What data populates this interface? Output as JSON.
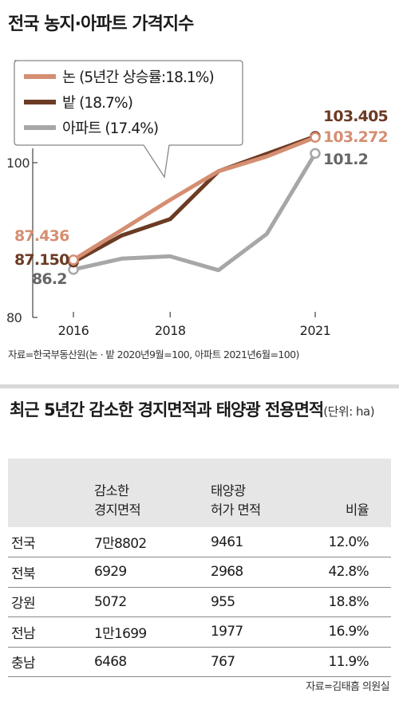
{
  "chart_title": "전국 농지·아파트 가격지수",
  "chart_source": "자료=한국부동산원(논 · 밭 2020년9월=100, 아파트 2021년6월=100)",
  "chart_data": {
    "type": "line",
    "title": "전국 농지·아파트 가격지수",
    "x_ticks": [
      "2016",
      "2018",
      "2021"
    ],
    "y_ticks": [
      "80",
      "100"
    ],
    "ylim": [
      80,
      120
    ],
    "grid": false,
    "legend_position": "top-left",
    "x": [
      2016,
      2017,
      2018,
      2019,
      2020,
      2021
    ],
    "series": [
      {
        "name": "논",
        "legend_label": "논 (5년간 상승률:18.1%)",
        "color": "#d58e72",
        "values": [
          87.436,
          91.3,
          95.2,
          98.9,
          100.8,
          103.272
        ],
        "start_label": "87.436",
        "end_label": "103.272"
      },
      {
        "name": "밭",
        "legend_label": "밭 (18.7%)",
        "color": "#6b3b24",
        "values": [
          87.15,
          90.6,
          92.7,
          98.9,
          null,
          103.405
        ],
        "start_label": "87.150",
        "end_label": "103.405"
      },
      {
        "name": "아파트",
        "legend_label": "아파트 (17.4%)",
        "color": "#a7a7a7",
        "values": [
          86.2,
          87.6,
          87.9,
          86.1,
          90.8,
          101.2
        ],
        "start_label": "86.2",
        "end_label": "101.2"
      }
    ]
  },
  "table": {
    "title_main": "최근 5년간 감소한 경지면적과 태양광 전용면적",
    "title_unit": "(단위: ha)",
    "headers": [
      [
        ""
      ],
      [
        "감소한",
        "경지면적"
      ],
      [
        "태양광",
        "허가 면적"
      ],
      [
        "비율"
      ]
    ],
    "rows": [
      [
        "전국",
        "7만8802",
        "9461",
        "12.0%"
      ],
      [
        "전북",
        "6929",
        "2968",
        "42.8%"
      ],
      [
        "강원",
        "5072",
        "955",
        "18.8%"
      ],
      [
        "전남",
        "1만1699",
        "1977",
        "16.9%"
      ],
      [
        "충남",
        "6468",
        "767",
        "11.9%"
      ]
    ],
    "source": "자료=김태흠 의원실"
  }
}
